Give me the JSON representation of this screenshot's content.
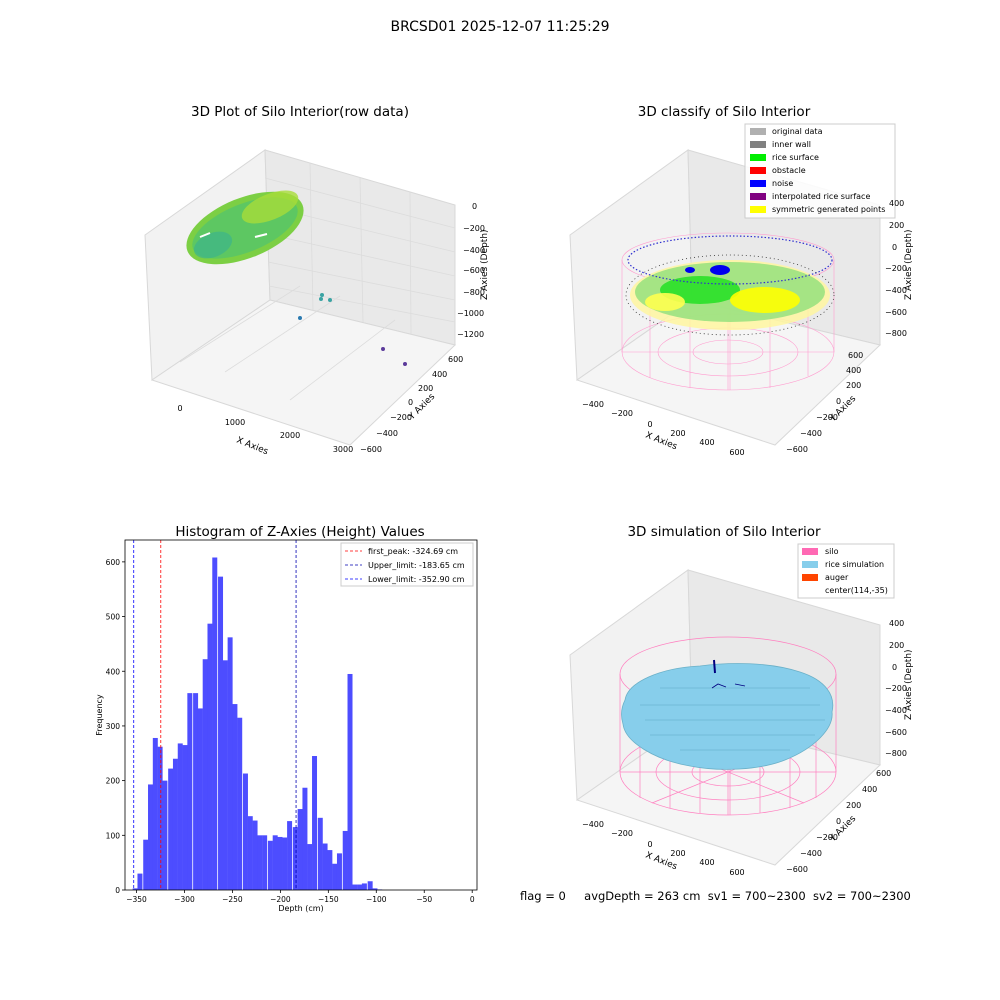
{
  "suptitle": "BRCSD01 2025-12-07 11:25:29",
  "panels": {
    "raw": {
      "title": "3D Plot of Silo Interior(row data)",
      "xlabel": "X Axies",
      "ylabel": "Y Axies",
      "zlabel": "Z Axies (Depth)",
      "xticks": [
        "0",
        "1000",
        "2000",
        "3000"
      ],
      "yticks": [
        "600",
        "400",
        "200",
        "0",
        "−200",
        "−400",
        "−600"
      ],
      "zticks": [
        "0",
        "−200",
        "−400",
        "−600",
        "−800",
        "−1000",
        "−1200"
      ]
    },
    "classify": {
      "title": "3D classify of Silo Interior",
      "xlabel": "X Axies",
      "ylabel": "Y Axies",
      "zlabel": "Z Axies (Depth)",
      "xticks": [
        "−400",
        "−200",
        "0",
        "200",
        "400",
        "600"
      ],
      "yticks": [
        "600",
        "400",
        "200",
        "0",
        "−200",
        "−400",
        "−600"
      ],
      "zticks": [
        "400",
        "200",
        "0",
        "−200",
        "−400",
        "−600",
        "−800"
      ],
      "legend": [
        {
          "label": "original data",
          "color": "#b0b0b0"
        },
        {
          "label": "inner wall",
          "color": "#808080"
        },
        {
          "label": "rice surface",
          "color": "#00ee00"
        },
        {
          "label": "obstacle",
          "color": "#ff0000"
        },
        {
          "label": "noise",
          "color": "#0000ff"
        },
        {
          "label": "interpolated rice surface",
          "color": "#800080"
        },
        {
          "label": "symmetric generated points",
          "color": "#ffff00"
        }
      ]
    },
    "simulation": {
      "title": "3D simulation of Silo Interior",
      "xlabel": "X Axies",
      "ylabel": "Y Axies",
      "zlabel": "Z Axies (Depth)",
      "xticks": [
        "−400",
        "−200",
        "0",
        "200",
        "400",
        "600"
      ],
      "yticks": [
        "600",
        "400",
        "200",
        "0",
        "−200",
        "−400",
        "−600"
      ],
      "zticks": [
        "400",
        "200",
        "0",
        "−200",
        "−400",
        "−600",
        "−800"
      ],
      "legend": [
        {
          "label": "silo",
          "color": "#ff69b4"
        },
        {
          "label": "rice simulation",
          "color": "#87ceeb"
        },
        {
          "label": "auger",
          "color": "#ff4500"
        },
        {
          "label": "center(114,-35)",
          "color": ""
        }
      ]
    }
  },
  "status": {
    "flag": "flag = 0",
    "avg": "avgDepth = 263 cm",
    "sv1": "sv1 = 700~2300",
    "sv2": "sv2 = 700~2300"
  },
  "colors": {
    "bar": "#4d4dff",
    "silo": "#ff69b4",
    "rice": "#87ceeb"
  },
  "chart_data": [
    {
      "type": "bar",
      "title": "Histogram of Z-Axies (Height) Values",
      "xlabel": "Depth (cm)",
      "ylabel": "Frequency",
      "xlim": [
        -362,
        5
      ],
      "ylim": [
        0,
        640
      ],
      "xticks": [
        -350,
        -300,
        -250,
        -200,
        -150,
        -100,
        -50,
        0
      ],
      "yticks": [
        0,
        100,
        200,
        300,
        400,
        500,
        600
      ],
      "bin_width": 5.2,
      "bin_starts": [
        -354,
        -349,
        -343,
        -338,
        -333,
        -328,
        -323,
        -317,
        -312,
        -307,
        -302,
        -297,
        -291,
        -286,
        -281,
        -276,
        -271,
        -265,
        -260,
        -255,
        -250,
        -245,
        -239,
        -234,
        -229,
        -224,
        -219,
        -213,
        -208,
        -203,
        -198,
        -193,
        -187,
        -182,
        -177,
        -172,
        -167,
        -161,
        -156,
        -151,
        -146,
        -141,
        -135,
        -130,
        -125,
        -120,
        -115,
        -109,
        -104,
        -99,
        -94,
        -89,
        -83,
        -78,
        -73,
        -68,
        -63,
        -57,
        -52,
        -47,
        -42,
        -37,
        -31,
        -26,
        -21,
        -16,
        -11,
        -5
      ],
      "values": [
        3,
        30,
        92,
        193,
        278,
        262,
        200,
        222,
        240,
        268,
        265,
        360,
        360,
        332,
        422,
        487,
        608,
        573,
        420,
        462,
        340,
        315,
        213,
        135,
        127,
        100,
        100,
        90,
        100,
        97,
        96,
        126,
        115,
        148,
        187,
        84,
        245,
        132,
        85,
        73,
        48,
        67,
        108,
        395,
        10,
        10,
        12,
        16,
        3,
        1,
        0,
        0,
        0,
        0,
        0,
        0,
        0,
        0,
        0,
        0,
        0,
        0,
        0,
        0,
        0,
        0,
        0,
        0
      ],
      "lines": [
        {
          "label": "first_peak: -324.69 cm",
          "value": -324.69,
          "color": "#ff0000"
        },
        {
          "label": "Upper_limit: -183.65 cm",
          "value": -183.65,
          "color": "#0000b0"
        },
        {
          "label": "Lower_limit: -352.90 cm",
          "value": -352.9,
          "color": "#0000ff"
        }
      ]
    }
  ]
}
